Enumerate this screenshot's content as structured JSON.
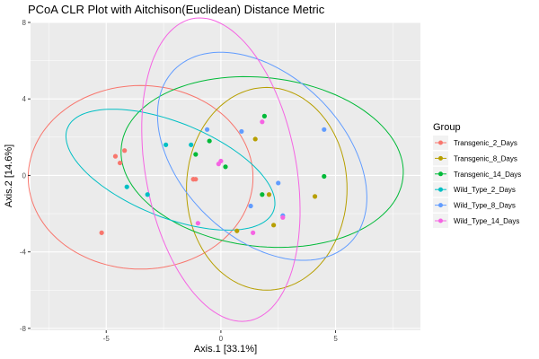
{
  "chart_data": {
    "type": "scatter",
    "title": "PCoA CLR Plot with Aitchison(Euclidean) Distance Metric",
    "xlabel": "Axis.1   [33.1%]",
    "ylabel": "Axis.2   [14.6%]",
    "xlim": [
      -8.3,
      8.7
    ],
    "ylim": [
      -8.1,
      8.0
    ],
    "x_ticks": [
      -5,
      0,
      5
    ],
    "y_ticks": [
      -8,
      -4,
      0,
      4,
      8
    ],
    "x_tick_labels": [
      "-5",
      "0",
      "5"
    ],
    "y_tick_labels": [
      "-8",
      "-4",
      "0",
      "4",
      "8"
    ],
    "grid": true,
    "panel_background": "#ebebeb",
    "ellipses": "one 95% ellipse per group, drawn in the group colour",
    "legend": {
      "title": "Group",
      "position": "right"
    },
    "series": [
      {
        "name": "Transgenic_2_Days",
        "color": "#f8766d",
        "points": [
          [
            -5.2,
            -3.0
          ],
          [
            -4.6,
            1.0
          ],
          [
            -4.4,
            0.65
          ],
          [
            -4.2,
            1.3
          ],
          [
            -1.2,
            -0.2
          ],
          [
            -1.2,
            -0.2
          ],
          [
            -1.1,
            -0.2
          ]
        ],
        "ellipse": {
          "center": [
            -3.5,
            -0.1
          ],
          "rx": 4.9,
          "ry": 4.8,
          "angle_deg": 0
        }
      },
      {
        "name": "Transgenic_8_Days",
        "color": "#b79f00",
        "points": [
          [
            1.5,
            1.9
          ],
          [
            2.1,
            -1.0
          ],
          [
            2.3,
            -2.6
          ],
          [
            0.7,
            -2.9
          ],
          [
            4.1,
            -1.1
          ]
        ],
        "ellipse": {
          "center": [
            2.0,
            -0.7
          ],
          "rx": 3.5,
          "ry": 5.3,
          "angle_deg": 0
        }
      },
      {
        "name": "Transgenic_14_Days",
        "color": "#00ba38",
        "points": [
          [
            -1.1,
            1.1
          ],
          [
            -0.5,
            1.8
          ],
          [
            0.2,
            0.45
          ],
          [
            1.9,
            3.1
          ],
          [
            1.8,
            -1.0
          ],
          [
            4.5,
            -0.05
          ]
        ],
        "ellipse": {
          "center": [
            1.8,
            0.7
          ],
          "rx": 6.2,
          "ry": 4.4,
          "angle_deg": -10
        }
      },
      {
        "name": "Wild_Type_2_Days",
        "color": "#00bfc4",
        "points": [
          [
            -4.1,
            -0.6
          ],
          [
            -3.2,
            -1.0
          ],
          [
            -2.4,
            1.6
          ],
          [
            -1.3,
            1.6
          ]
        ],
        "ellipse": {
          "center": [
            -2.2,
            0.3
          ],
          "rx": 5.0,
          "ry": 2.4,
          "angle_deg": -28
        }
      },
      {
        "name": "Wild_Type_8_Days",
        "color": "#619cff",
        "points": [
          [
            -0.6,
            2.4
          ],
          [
            0.9,
            2.3
          ],
          [
            1.3,
            -1.6
          ],
          [
            2.5,
            -0.4
          ],
          [
            2.7,
            -2.1
          ],
          [
            4.5,
            2.4
          ]
        ],
        "ellipse": {
          "center": [
            1.8,
            1.0
          ],
          "rx": 6.0,
          "ry": 3.8,
          "angle_deg": -57
        }
      },
      {
        "name": "Wild_Type_14_Days",
        "color": "#f564e3",
        "points": [
          [
            -1.0,
            -2.5
          ],
          [
            -0.1,
            0.6
          ],
          [
            0.0,
            0.75
          ],
          [
            1.4,
            -3.0
          ],
          [
            1.8,
            2.8
          ],
          [
            2.7,
            -2.2
          ]
        ],
        "ellipse": {
          "center": [
            0.0,
            0.3
          ],
          "rx": 8.0,
          "ry": 3.3,
          "angle_deg": -82
        }
      }
    ]
  }
}
